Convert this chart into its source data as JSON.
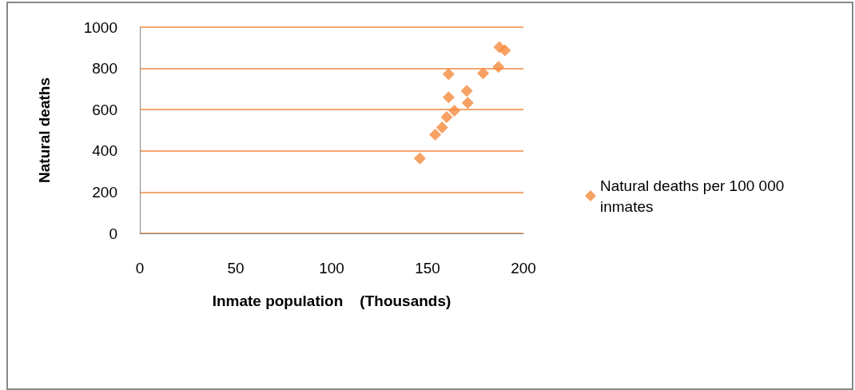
{
  "chart_data": {
    "type": "scatter",
    "xlabel": "Inmate population    (Thousands)",
    "ylabel": "Natural deaths",
    "series": [
      {
        "name": "Natural deaths per 100 000 inmates",
        "color": "#f58a3c",
        "x": [
          146,
          154,
          157.6,
          160,
          164,
          161,
          161,
          170.5,
          171,
          179,
          187,
          187.5,
          190.4
        ],
        "values": [
          363,
          479,
          514,
          564,
          595,
          660,
          772,
          691,
          633,
          776,
          807,
          903,
          888
        ]
      }
    ],
    "xlim": [
      0,
      200
    ],
    "xticks": [
      0,
      50,
      100,
      150,
      200
    ],
    "ylim": [
      0,
      1000
    ],
    "yticks": [
      0,
      200,
      400,
      600,
      800,
      1000
    ],
    "grid": "y",
    "legend": "right",
    "marker": "diamond"
  }
}
